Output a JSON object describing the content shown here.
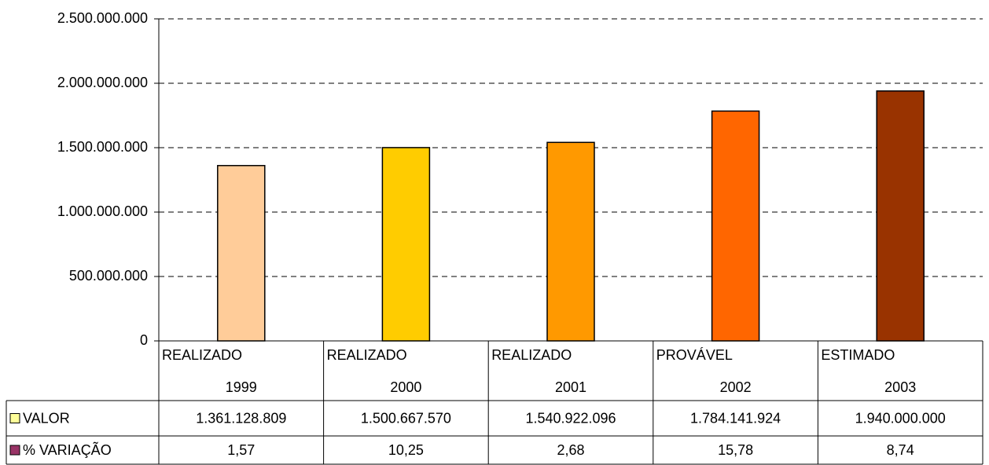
{
  "chart_data": {
    "type": "bar",
    "categories": [
      [
        "REALIZADO",
        "1999"
      ],
      [
        "REALIZADO",
        "2000"
      ],
      [
        "REALIZADO",
        "2001"
      ],
      [
        "PROVÁVEL",
        "2002"
      ],
      [
        "ESTIMADO",
        "2003"
      ]
    ],
    "bar_colors": [
      "#ffcc99",
      "#ffcc00",
      "#ff9900",
      "#ff6600",
      "#993300"
    ],
    "series": [
      {
        "name": "VALOR",
        "color": "#ffff99",
        "values": [
          1361128809,
          1500667570,
          1540922096,
          1784141924,
          1940000000
        ],
        "value_labels": [
          "1.361.128.809",
          "1.500.667.570",
          "1.540.922.096",
          "1.784.141.924",
          "1.940.000.000"
        ]
      },
      {
        "name": "% VARIAÇÃO",
        "color": "#993366",
        "values": [
          1.57,
          10.25,
          2.68,
          15.78,
          8.74
        ],
        "value_labels": [
          "1,57",
          "10,25",
          "2,68",
          "15,78",
          "8,74"
        ]
      }
    ],
    "ylim": [
      0,
      2500000000
    ],
    "yticks": [
      0,
      {
        "value": 500000000,
        "label": "500.000.000"
      },
      {
        "value": 1000000000,
        "label": "1.000.000.000"
      },
      {
        "value": 1500000000,
        "label": "1.500.000.000"
      },
      {
        "value": 2000000000,
        "label": "2.000.000.000"
      },
      {
        "value": 2500000000,
        "label": "2.500.000.000"
      }
    ],
    "grid": true
  }
}
